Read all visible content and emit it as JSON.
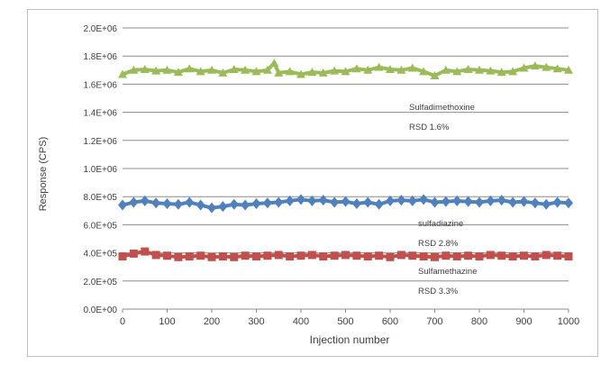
{
  "chart_data": {
    "type": "line",
    "title": "",
    "xlabel": "Injection number",
    "ylabel": "Response (CPS)",
    "xlim": [
      0,
      1000
    ],
    "ylim": [
      0,
      2000000
    ],
    "x_ticks": [
      0,
      100,
      200,
      300,
      400,
      500,
      600,
      700,
      800,
      900,
      1000
    ],
    "x_tick_labels": [
      "0",
      "100",
      "200",
      "300",
      "400",
      "500",
      "600",
      "700",
      "800",
      "900",
      "1000"
    ],
    "y_ticks": [
      0,
      200000,
      400000,
      600000,
      800000,
      1000000,
      1200000,
      1400000,
      1600000,
      1800000,
      2000000
    ],
    "y_tick_labels": [
      "0.0E+00",
      "2.0E+05",
      "4.0E+05",
      "6.0E+05",
      "8.0E+05",
      "1.0E+06",
      "1.2E+06",
      "1.4E+06",
      "1.6E+06",
      "1.8E+06",
      "2.0E+06"
    ],
    "grid": "horizontal",
    "series": [
      {
        "name": "Sulfadimethoxine",
        "rsd": "RSD 1.6%",
        "color": "#9bbb59",
        "marker": "triangle",
        "x": [
          0,
          25,
          50,
          75,
          100,
          125,
          150,
          175,
          200,
          225,
          250,
          275,
          300,
          325,
          340,
          350,
          375,
          400,
          425,
          450,
          475,
          500,
          525,
          550,
          575,
          600,
          625,
          650,
          675,
          700,
          725,
          750,
          775,
          800,
          825,
          850,
          875,
          900,
          925,
          950,
          975,
          1000
        ],
        "y": [
          1670000,
          1700000,
          1705000,
          1695000,
          1700000,
          1685000,
          1710000,
          1690000,
          1700000,
          1680000,
          1705000,
          1700000,
          1690000,
          1700000,
          1750000,
          1680000,
          1690000,
          1670000,
          1685000,
          1680000,
          1695000,
          1690000,
          1710000,
          1700000,
          1720000,
          1705000,
          1700000,
          1715000,
          1690000,
          1660000,
          1700000,
          1690000,
          1705000,
          1700000,
          1695000,
          1685000,
          1690000,
          1715000,
          1730000,
          1720000,
          1710000,
          1700000
        ]
      },
      {
        "name": "sulfadiazine",
        "rsd": "RSD 2.8%",
        "color": "#4f81bd",
        "marker": "diamond",
        "x": [
          0,
          25,
          50,
          75,
          100,
          125,
          150,
          175,
          200,
          225,
          250,
          275,
          300,
          325,
          350,
          375,
          400,
          425,
          450,
          475,
          500,
          525,
          550,
          575,
          600,
          625,
          650,
          675,
          700,
          725,
          750,
          775,
          800,
          825,
          850,
          875,
          900,
          925,
          950,
          975,
          1000
        ],
        "y": [
          740000,
          760000,
          770000,
          755000,
          750000,
          745000,
          760000,
          740000,
          720000,
          730000,
          745000,
          740000,
          750000,
          755000,
          760000,
          770000,
          780000,
          770000,
          775000,
          760000,
          765000,
          750000,
          760000,
          745000,
          770000,
          775000,
          770000,
          780000,
          760000,
          765000,
          770000,
          765000,
          760000,
          770000,
          775000,
          760000,
          765000,
          755000,
          745000,
          760000,
          755000
        ]
      },
      {
        "name": "Sulfamethazine",
        "rsd": "RSD 3.3%",
        "color": "#c0504d",
        "marker": "square",
        "x": [
          0,
          25,
          50,
          75,
          100,
          125,
          150,
          175,
          200,
          225,
          250,
          275,
          300,
          325,
          350,
          375,
          400,
          425,
          450,
          475,
          500,
          525,
          550,
          575,
          600,
          625,
          650,
          675,
          700,
          725,
          750,
          775,
          800,
          825,
          850,
          875,
          900,
          925,
          950,
          975,
          1000
        ],
        "y": [
          375000,
          395000,
          410000,
          385000,
          380000,
          370000,
          375000,
          380000,
          370000,
          375000,
          370000,
          380000,
          375000,
          380000,
          385000,
          375000,
          380000,
          385000,
          375000,
          380000,
          385000,
          380000,
          375000,
          380000,
          370000,
          385000,
          380000,
          375000,
          370000,
          380000,
          375000,
          380000,
          375000,
          385000,
          380000,
          375000,
          380000,
          375000,
          385000,
          380000,
          375000
        ]
      }
    ]
  }
}
